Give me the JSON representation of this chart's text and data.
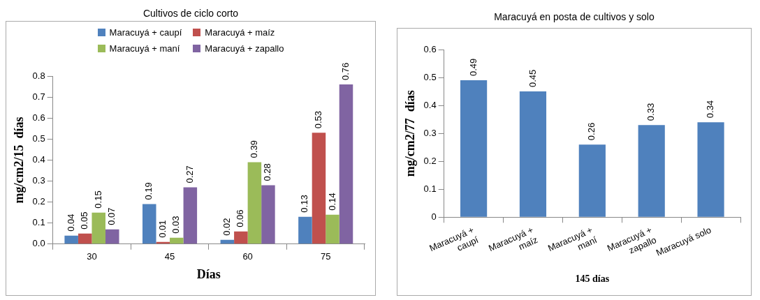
{
  "chart_data": [
    {
      "type": "bar",
      "title": "Cultivos de ciclo corto",
      "xlabel": "Días",
      "ylabel": "mg/cm2/15  días",
      "categories": [
        "30",
        "45",
        "60",
        "75"
      ],
      "series": [
        {
          "name": "Maracuyá + caupí",
          "color": "#4f81bd",
          "values": [
            0.04,
            0.19,
            0.02,
            0.13
          ]
        },
        {
          "name": "Maracuyá + maíz",
          "color": "#c0504d",
          "values": [
            0.05,
            0.01,
            0.06,
            0.53
          ]
        },
        {
          "name": "Maracuyá + maní",
          "color": "#9bbb59",
          "values": [
            0.15,
            0.03,
            0.39,
            0.14
          ]
        },
        {
          "name": "Maracuyá + zapallo",
          "color": "#8064a2",
          "values": [
            0.07,
            0.27,
            0.28,
            0.76
          ]
        }
      ],
      "ylim": [
        0,
        0.8
      ],
      "yticks": [
        {
          "value": 0,
          "label": "0.0"
        },
        0.1,
        0.2,
        0.3,
        0.4,
        0.5,
        0.6,
        0.7,
        0.8
      ],
      "grid": false,
      "legend": "top",
      "data_labels": true
    },
    {
      "type": "bar",
      "title": "Maracuyá en posta de cultivos y solo",
      "xlabel": "145 días",
      "ylabel": "mg/cm2/77  días",
      "categories": [
        "Maracuyá + caupí",
        "Maracuyá + maíz",
        "Maracuyá + maní",
        "Maracuyá + zapallo",
        "Maracuyá solo"
      ],
      "values": [
        0.49,
        0.45,
        0.26,
        0.33,
        0.34
      ],
      "color": "#4f81bd",
      "ylim": [
        0,
        0.6
      ],
      "yticks": [
        0,
        0.1,
        0.2,
        0.3,
        0.4,
        0.5,
        0.6
      ],
      "grid": false,
      "data_labels": true
    }
  ]
}
